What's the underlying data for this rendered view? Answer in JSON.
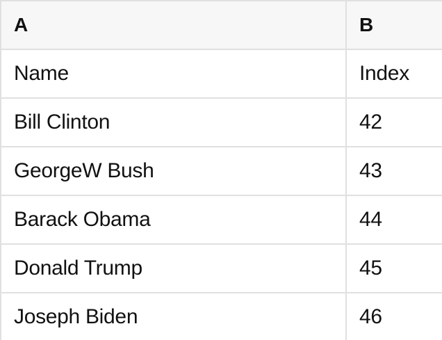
{
  "sheet": {
    "columns": [
      "A",
      "B"
    ],
    "rows": [
      [
        "Name",
        "Index"
      ],
      [
        "Bill Clinton",
        42
      ],
      [
        "GeorgeW Bush",
        43
      ],
      [
        "Barack Obama",
        44
      ],
      [
        "Donald Trump",
        45
      ],
      [
        "Joseph Biden",
        46
      ]
    ]
  },
  "colors": {
    "header_background": "#f7f7f7",
    "grid_border": "#e0e0e0",
    "cell_background": "#ffffff",
    "text": "#111111"
  }
}
